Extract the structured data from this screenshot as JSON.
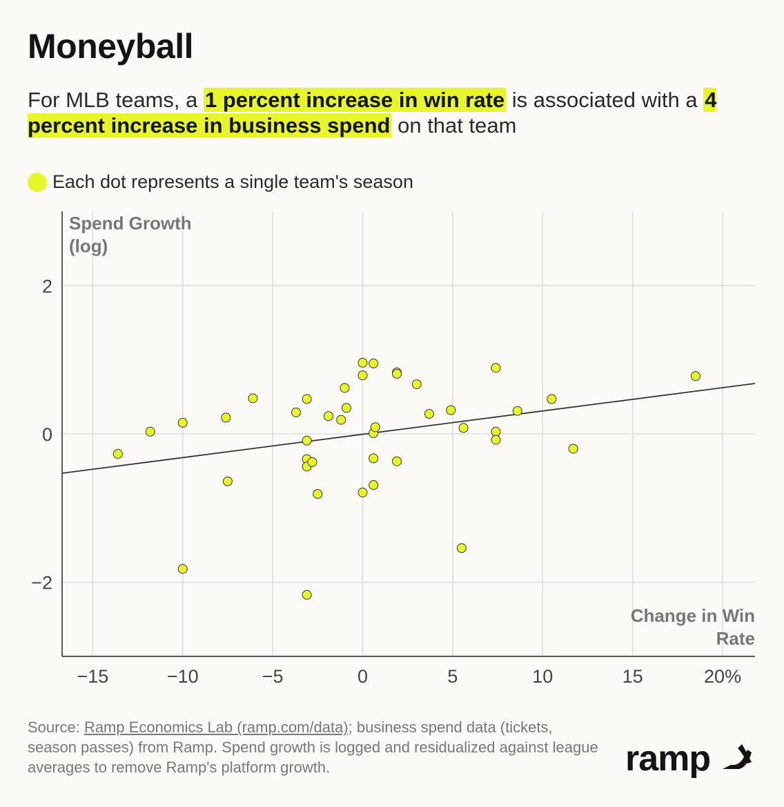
{
  "header": {
    "title": "Moneyball",
    "subtitle_pre": "For MLB teams, a ",
    "subtitle_hl1": "1 percent increase in win rate",
    "subtitle_mid": " is associated with a ",
    "subtitle_hl2": "4 percent increase in business spend",
    "subtitle_post": " on that team",
    "highlight_color": "#e7f62b"
  },
  "legend": {
    "label": "Each dot represents a single team's season",
    "color": "#e7f62b"
  },
  "chart_data": {
    "type": "scatter",
    "ylabel_line1": "Spend Growth",
    "ylabel_line2": "(log)",
    "xlabel_line1": "Change in Win",
    "xlabel_line2": "Rate",
    "xlim": [
      -16.7,
      21.8
    ],
    "ylim": [
      -3.0,
      3.0
    ],
    "x_ticks": [
      -15,
      -10,
      -5,
      0,
      5,
      10,
      15,
      20
    ],
    "x_tick_labels": [
      "−15",
      "−10",
      "−5",
      "0",
      "5",
      "10",
      "15",
      "20%"
    ],
    "y_ticks": [
      -2,
      0,
      2
    ],
    "y_tick_labels": [
      "−2",
      "0",
      "2"
    ],
    "grid": true,
    "point_color": "#e7f62b",
    "trend_line": {
      "x": [
        -16.7,
        21.8
      ],
      "y": [
        -0.53,
        0.68
      ]
    },
    "points": [
      {
        "x": -13.6,
        "y": -0.27
      },
      {
        "x": -11.8,
        "y": 0.03
      },
      {
        "x": -10.0,
        "y": 0.15
      },
      {
        "x": -10.0,
        "y": -1.82
      },
      {
        "x": -7.6,
        "y": 0.22
      },
      {
        "x": -7.5,
        "y": -0.64
      },
      {
        "x": -6.1,
        "y": 0.48
      },
      {
        "x": -3.7,
        "y": 0.29
      },
      {
        "x": -3.1,
        "y": 0.47
      },
      {
        "x": -3.1,
        "y": -0.09
      },
      {
        "x": -3.1,
        "y": -0.34
      },
      {
        "x": -3.1,
        "y": -0.44
      },
      {
        "x": -2.8,
        "y": -0.38
      },
      {
        "x": -2.5,
        "y": -0.81
      },
      {
        "x": -3.1,
        "y": -2.17
      },
      {
        "x": -1.9,
        "y": 0.24
      },
      {
        "x": -1.2,
        "y": 0.19
      },
      {
        "x": -1.0,
        "y": 0.62
      },
      {
        "x": -0.9,
        "y": 0.35
      },
      {
        "x": 0.0,
        "y": 0.96
      },
      {
        "x": 0.0,
        "y": 0.79
      },
      {
        "x": 0.0,
        "y": -0.79
      },
      {
        "x": 0.6,
        "y": 0.95
      },
      {
        "x": 0.6,
        "y": 0.01
      },
      {
        "x": 0.7,
        "y": 0.09
      },
      {
        "x": 0.6,
        "y": -0.33
      },
      {
        "x": 0.6,
        "y": -0.69
      },
      {
        "x": 1.9,
        "y": 0.83
      },
      {
        "x": 1.9,
        "y": 0.81
      },
      {
        "x": 1.9,
        "y": -0.37
      },
      {
        "x": 3.0,
        "y": 0.67
      },
      {
        "x": 3.7,
        "y": 0.27
      },
      {
        "x": 4.9,
        "y": 0.32
      },
      {
        "x": 5.5,
        "y": -1.54
      },
      {
        "x": 5.6,
        "y": 0.08
      },
      {
        "x": 7.4,
        "y": 0.89
      },
      {
        "x": 7.4,
        "y": 0.03
      },
      {
        "x": 7.4,
        "y": -0.08
      },
      {
        "x": 8.6,
        "y": 0.31
      },
      {
        "x": 10.5,
        "y": 0.47
      },
      {
        "x": 11.7,
        "y": -0.2
      },
      {
        "x": 18.5,
        "y": 0.78
      }
    ]
  },
  "footer": {
    "source_prefix": "Source: ",
    "source_link": "Ramp Economics Lab (ramp.com/data)",
    "source_rest": "; business spend data (tickets, season passes) from Ramp. Spend growth is logged and residualized against league averages to remove Ramp's platform growth.",
    "brand": "ramp"
  }
}
